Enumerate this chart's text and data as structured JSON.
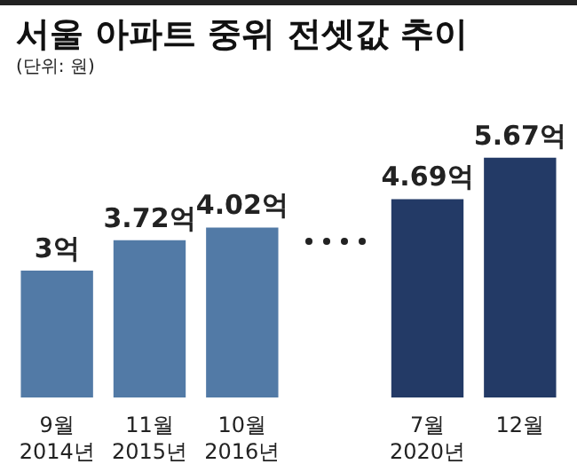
{
  "chart_data": {
    "type": "bar",
    "title": "서울 아파트 중위 전셋값 추이",
    "subtitle": "(단위: 원)",
    "categories": [
      "9월\n2014년",
      "11월\n2015년",
      "10월\n2016년",
      null,
      "7월\n2020년",
      "12월"
    ],
    "values": [
      3,
      3.72,
      4.02,
      null,
      4.69,
      5.67
    ],
    "colors": [
      "#527aa6",
      "#527aa6",
      "#527aa6",
      "#527aa6",
      "#233a66",
      "#233a66"
    ],
    "value_labels": [
      "3억",
      "3.72억",
      "4.02억",
      null,
      "4.69억",
      "5.67억"
    ]
  }
}
